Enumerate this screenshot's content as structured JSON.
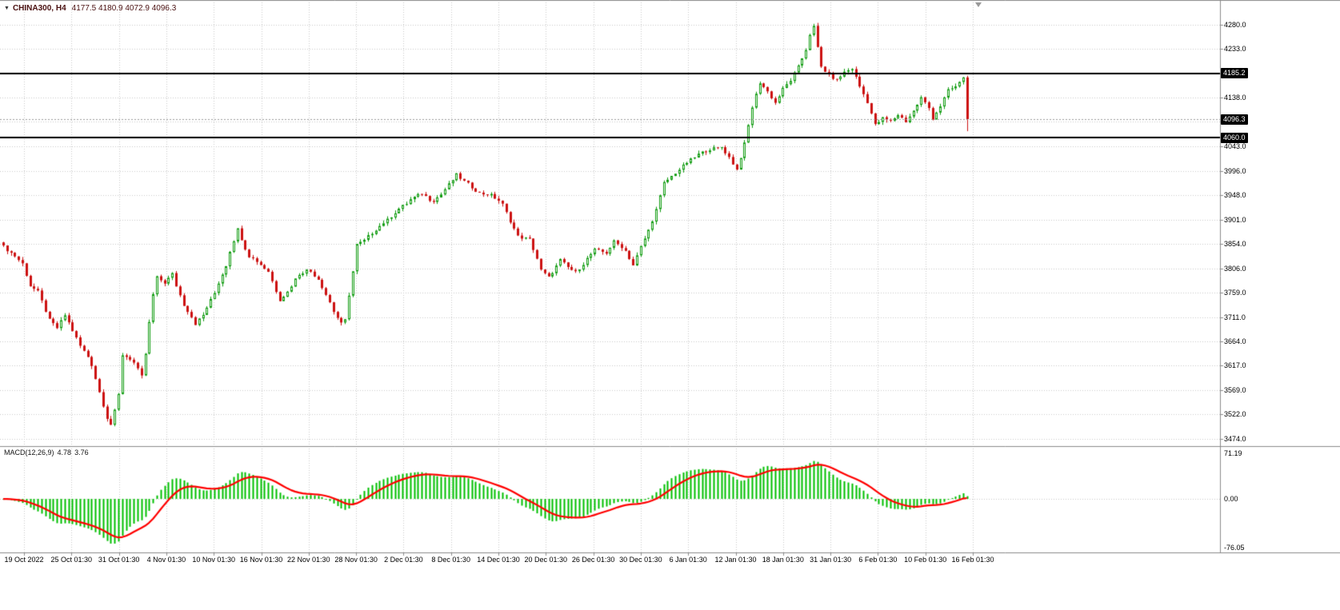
{
  "header": {
    "symbol_timeframe": "CHINA300, H4",
    "ohlc": "4177.5 4180.9 4072.9 4096.3",
    "dropdown_icon": "▼"
  },
  "macd": {
    "label": "MACD(12,26,9)",
    "main_value": "4.78",
    "signal_value": "3.76"
  },
  "colors": {
    "background": "#ffffff",
    "grid": "#c9c9c9",
    "separator": "#8a8a8a",
    "bull": "#0b9a0b",
    "bull_fill": "#ffffff",
    "bear": "#cc1111",
    "hline": "#000000",
    "bid_line": "#9a9a9a",
    "macd_hist": "#00bf00",
    "macd_signal": "#ff0000",
    "tag_bg": "#000000",
    "tag_text": "#ffffff",
    "axis_text": "#000000",
    "title_text": "#4a1111"
  },
  "chart_data": {
    "type": "candlestick",
    "symbol": "CHINA300",
    "timeframe": "H4",
    "bars": 252,
    "last_ohlc": {
      "open": 4177.5,
      "high": 4180.9,
      "low": 4072.9,
      "close": 4096.3
    },
    "price_axis": {
      "ylim": [
        3474,
        4280
      ],
      "labels": [
        {
          "text": "4280.0",
          "value": 4280,
          "visible": true
        },
        {
          "text": "4233.0",
          "value": 4233,
          "visible": true
        },
        {
          "text": "4185.0",
          "value": 4185,
          "visible": false
        },
        {
          "text": "4138.0",
          "value": 4138,
          "visible": true
        },
        {
          "text": "4091.0",
          "value": 4091,
          "visible": false
        },
        {
          "text": "4043.0",
          "value": 4043,
          "visible": true
        },
        {
          "text": "3996.0",
          "value": 3996,
          "visible": true
        },
        {
          "text": "3948.0",
          "value": 3948,
          "visible": true
        },
        {
          "text": "3901.0",
          "value": 3901,
          "visible": true
        },
        {
          "text": "3854.0",
          "value": 3854,
          "visible": true
        },
        {
          "text": "3806.0",
          "value": 3806,
          "visible": true
        },
        {
          "text": "3759.0",
          "value": 3759,
          "visible": true
        },
        {
          "text": "3711.0",
          "value": 3711,
          "visible": true
        },
        {
          "text": "3664.0",
          "value": 3664,
          "visible": true
        },
        {
          "text": "3617.0",
          "value": 3617,
          "visible": true
        },
        {
          "text": "3569.0",
          "value": 3569,
          "visible": true
        },
        {
          "text": "3522.0",
          "value": 3522,
          "visible": true
        },
        {
          "text": "3474.0",
          "value": 3474,
          "visible": true
        }
      ]
    },
    "time_axis": {
      "labels": [
        "19 Oct 2022",
        "25 Oct 01:30",
        "31 Oct 01:30",
        "4 Nov 01:30",
        "10 Nov 01:30",
        "16 Nov 01:30",
        "22 Nov 01:30",
        "28 Nov 01:30",
        "2 Dec 01:30",
        "8 Dec 01:30",
        "14 Dec 01:30",
        "20 Dec 01:30",
        "26 Dec 01:30",
        "30 Dec 01:30",
        "6 Jan 01:30",
        "12 Jan 01:30",
        "18 Jan 01:30",
        "31 Jan 01:30",
        "6 Feb 01:30",
        "10 Feb 01:30",
        "16 Feb 01:30"
      ]
    },
    "horizontal_lines": [
      4185.2,
      4060.0
    ],
    "bid_price": 4096.3,
    "price_tags": [
      {
        "text": "4185.2",
        "value": 4185.2
      },
      {
        "text": "4096.3",
        "value": 4096.3
      },
      {
        "text": "4060.0",
        "value": 4060.0
      }
    ],
    "indicator": {
      "name": "MACD",
      "params": [
        12,
        26,
        9
      ],
      "current_main": 4.78,
      "current_signal": 3.76,
      "scale": [
        {
          "text": "71.19",
          "value": 71.19
        },
        {
          "text": "0.00",
          "value": 0
        },
        {
          "text": "-76.05",
          "value": -76.05
        }
      ]
    },
    "close_anchors": [
      [
        0,
        3848
      ],
      [
        3,
        3830
      ],
      [
        5,
        3815
      ],
      [
        7,
        3772
      ],
      [
        9,
        3760
      ],
      [
        12,
        3705
      ],
      [
        14,
        3690
      ],
      [
        16,
        3715
      ],
      [
        18,
        3685
      ],
      [
        20,
        3655
      ],
      [
        22,
        3634
      ],
      [
        23,
        3618
      ],
      [
        25,
        3565
      ],
      [
        26,
        3540
      ],
      [
        27,
        3515
      ],
      [
        28,
        3502
      ],
      [
        29,
        3528
      ],
      [
        30,
        3560
      ],
      [
        31,
        3638
      ],
      [
        33,
        3630
      ],
      [
        34,
        3622
      ],
      [
        36,
        3595
      ],
      [
        37,
        3640
      ],
      [
        38,
        3700
      ],
      [
        39,
        3755
      ],
      [
        40,
        3788
      ],
      [
        42,
        3778
      ],
      [
        44,
        3795
      ],
      [
        45,
        3772
      ],
      [
        47,
        3735
      ],
      [
        49,
        3712
      ],
      [
        50,
        3698
      ],
      [
        52,
        3715
      ],
      [
        53,
        3730
      ],
      [
        55,
        3758
      ],
      [
        56,
        3778
      ],
      [
        58,
        3812
      ],
      [
        59,
        3840
      ],
      [
        61,
        3882
      ],
      [
        63,
        3845
      ],
      [
        64,
        3830
      ],
      [
        66,
        3820
      ],
      [
        68,
        3806
      ],
      [
        69,
        3800
      ],
      [
        71,
        3762
      ],
      [
        72,
        3745
      ],
      [
        74,
        3760
      ],
      [
        76,
        3785
      ],
      [
        77,
        3795
      ],
      [
        79,
        3802
      ],
      [
        80,
        3800
      ],
      [
        82,
        3785
      ],
      [
        83,
        3770
      ],
      [
        85,
        3740
      ],
      [
        86,
        3722
      ],
      [
        88,
        3698
      ],
      [
        89,
        3705
      ],
      [
        90,
        3755
      ],
      [
        91,
        3800
      ],
      [
        92,
        3852
      ],
      [
        94,
        3860
      ],
      [
        95,
        3868
      ],
      [
        97,
        3882
      ],
      [
        99,
        3895
      ],
      [
        100,
        3900
      ],
      [
        102,
        3915
      ],
      [
        103,
        3922
      ],
      [
        105,
        3932
      ],
      [
        106,
        3940
      ],
      [
        108,
        3948
      ],
      [
        109,
        3952
      ],
      [
        111,
        3940
      ],
      [
        112,
        3938
      ],
      [
        114,
        3950
      ],
      [
        115,
        3960
      ],
      [
        117,
        3978
      ],
      [
        118,
        3988
      ],
      [
        120,
        3975
      ],
      [
        121,
        3970
      ],
      [
        123,
        3958
      ],
      [
        124,
        3952
      ],
      [
        126,
        3950
      ],
      [
        127,
        3948
      ],
      [
        129,
        3938
      ],
      [
        130,
        3930
      ],
      [
        132,
        3898
      ],
      [
        134,
        3868
      ],
      [
        136,
        3864
      ],
      [
        137,
        3862
      ],
      [
        139,
        3825
      ],
      [
        140,
        3802
      ],
      [
        142,
        3788
      ],
      [
        144,
        3810
      ],
      [
        145,
        3822
      ],
      [
        146,
        3815
      ],
      [
        147,
        3808
      ],
      [
        149,
        3798
      ],
      [
        151,
        3815
      ],
      [
        152,
        3825
      ],
      [
        154,
        3842
      ],
      [
        156,
        3838
      ],
      [
        157,
        3836
      ],
      [
        159,
        3858
      ],
      [
        161,
        3848
      ],
      [
        162,
        3840
      ],
      [
        164,
        3812
      ],
      [
        166,
        3848
      ],
      [
        168,
        3880
      ],
      [
        170,
        3920
      ],
      [
        172,
        3972
      ],
      [
        174,
        3985
      ],
      [
        175,
        3992
      ],
      [
        177,
        4005
      ],
      [
        178,
        4012
      ],
      [
        180,
        4022
      ],
      [
        181,
        4028
      ],
      [
        183,
        4035
      ],
      [
        184,
        4038
      ],
      [
        186,
        4040
      ],
      [
        187,
        4042
      ],
      [
        189,
        4022
      ],
      [
        191,
        3998
      ],
      [
        193,
        4048
      ],
      [
        195,
        4120
      ],
      [
        197,
        4168
      ],
      [
        199,
        4150
      ],
      [
        201,
        4128
      ],
      [
        203,
        4155
      ],
      [
        205,
        4172
      ],
      [
        207,
        4198
      ],
      [
        209,
        4232
      ],
      [
        210,
        4262
      ],
      [
        211,
        4276
      ],
      [
        212,
        4235
      ],
      [
        213,
        4198
      ],
      [
        215,
        4182
      ],
      [
        217,
        4172
      ],
      [
        219,
        4188
      ],
      [
        221,
        4195
      ],
      [
        223,
        4160
      ],
      [
        225,
        4130
      ],
      [
        227,
        4085
      ],
      [
        229,
        4098
      ],
      [
        231,
        4092
      ],
      [
        233,
        4105
      ],
      [
        235,
        4092
      ],
      [
        237,
        4112
      ],
      [
        239,
        4138
      ],
      [
        241,
        4118
      ],
      [
        242,
        4098
      ],
      [
        244,
        4122
      ],
      [
        246,
        4152
      ],
      [
        248,
        4160
      ],
      [
        250,
        4177.5
      ],
      [
        251,
        4096.3
      ]
    ]
  }
}
